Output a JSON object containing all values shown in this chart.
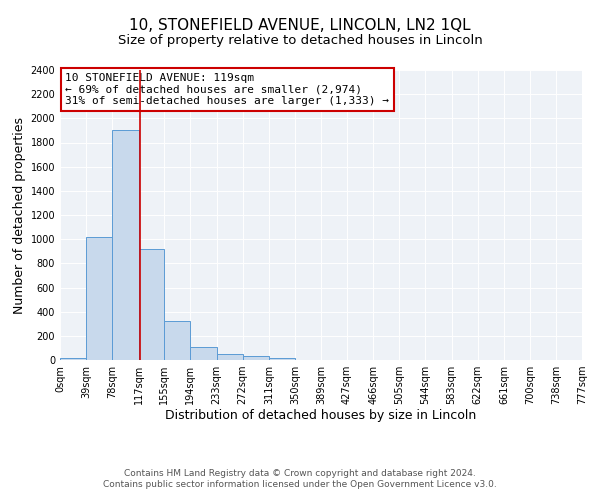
{
  "title": "10, STONEFIELD AVENUE, LINCOLN, LN2 1QL",
  "subtitle": "Size of property relative to detached houses in Lincoln",
  "xlabel": "Distribution of detached houses by size in Lincoln",
  "ylabel": "Number of detached properties",
  "bin_edges": [
    0,
    39,
    78,
    117,
    155,
    194,
    233,
    272,
    311,
    350,
    389,
    427,
    466,
    505,
    544,
    583,
    622,
    661,
    700,
    738,
    777
  ],
  "bin_labels": [
    "0sqm",
    "39sqm",
    "78sqm",
    "117sqm",
    "155sqm",
    "194sqm",
    "233sqm",
    "272sqm",
    "311sqm",
    "350sqm",
    "389sqm",
    "427sqm",
    "466sqm",
    "505sqm",
    "544sqm",
    "583sqm",
    "622sqm",
    "661sqm",
    "700sqm",
    "738sqm",
    "777sqm"
  ],
  "bar_heights": [
    20,
    1020,
    1900,
    920,
    320,
    110,
    50,
    30,
    20,
    0,
    0,
    0,
    0,
    0,
    0,
    0,
    0,
    0,
    0,
    0
  ],
  "bar_color": "#c8d9ec",
  "bar_edge_color": "#5b9bd5",
  "vline_x": 119,
  "vline_color": "#cc0000",
  "ylim": [
    0,
    2400
  ],
  "yticks": [
    0,
    200,
    400,
    600,
    800,
    1000,
    1200,
    1400,
    1600,
    1800,
    2000,
    2200,
    2400
  ],
  "annotation_line1": "10 STONEFIELD AVENUE: 119sqm",
  "annotation_line2": "← 69% of detached houses are smaller (2,974)",
  "annotation_line3": "31% of semi-detached houses are larger (1,333) →",
  "annotation_box_color": "#ffffff",
  "annotation_box_edge": "#cc0000",
  "footer_line1": "Contains HM Land Registry data © Crown copyright and database right 2024.",
  "footer_line2": "Contains public sector information licensed under the Open Government Licence v3.0.",
  "plot_bg_color": "#eef2f7",
  "title_fontsize": 11,
  "subtitle_fontsize": 9.5,
  "axis_label_fontsize": 9,
  "tick_fontsize": 7,
  "annotation_fontsize": 8,
  "footer_fontsize": 6.5
}
